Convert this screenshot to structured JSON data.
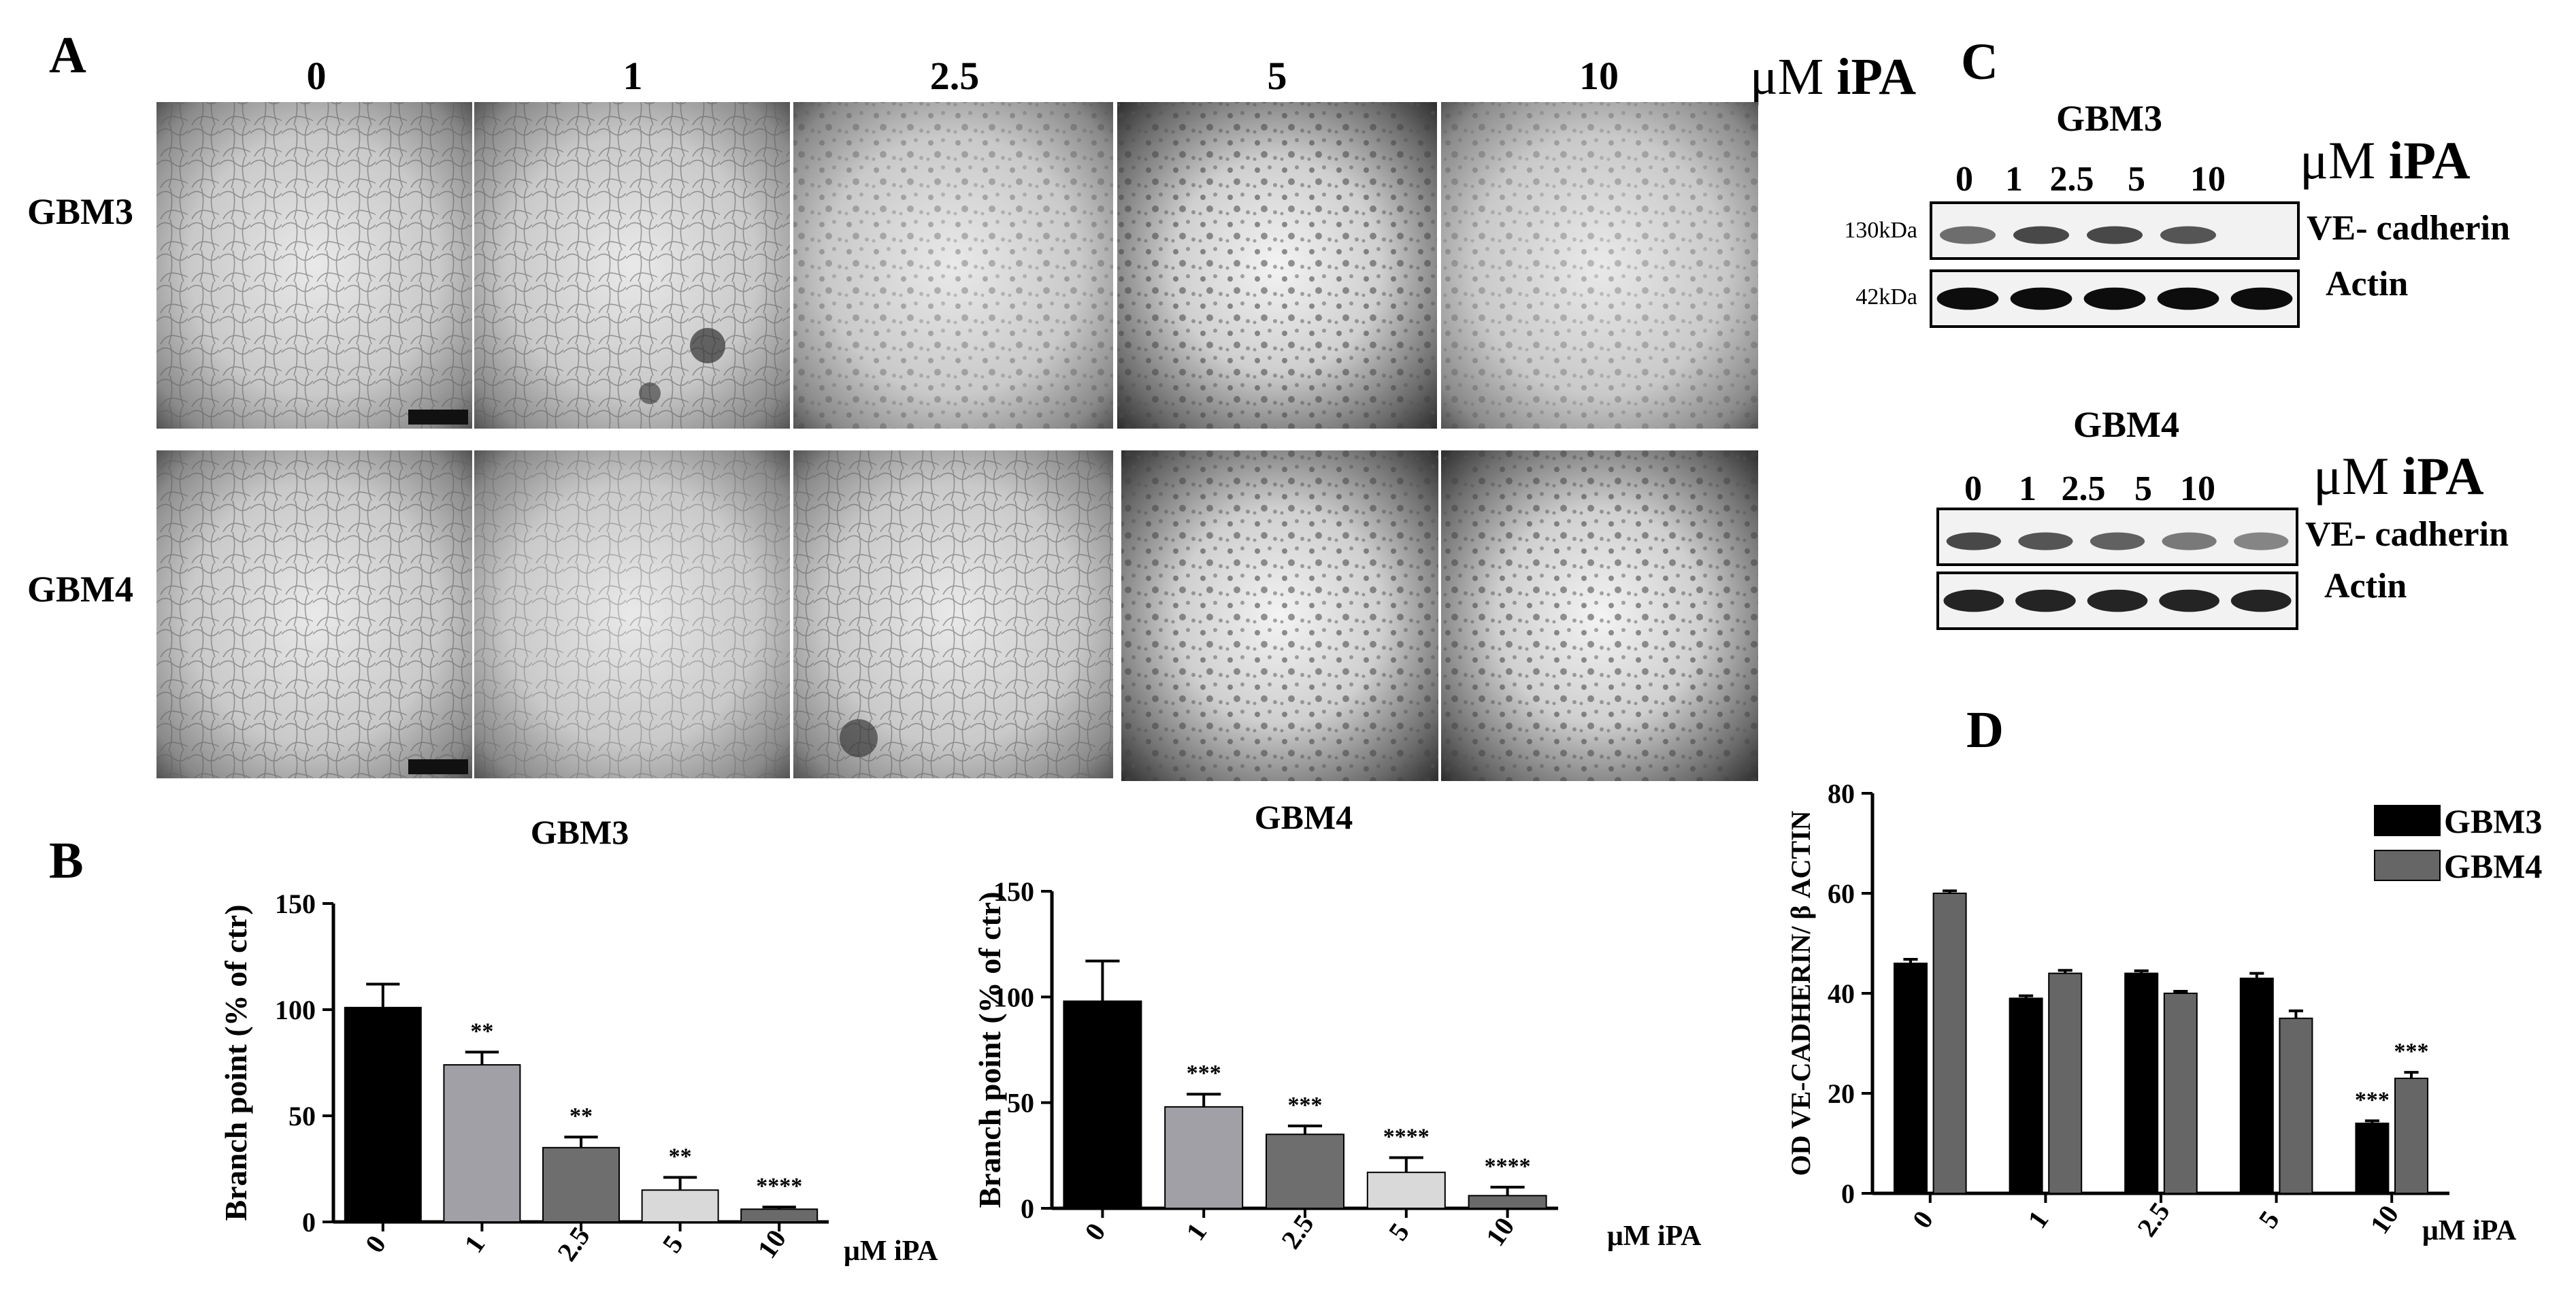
{
  "panel_labels": {
    "A": "A",
    "B": "B",
    "C": "C",
    "D": "D"
  },
  "micrographs": {
    "doses": [
      "0",
      "1",
      "2.5",
      "5",
      "10"
    ],
    "unit_label": "μM",
    "unit_drug": "iPA",
    "rows": [
      "GBM3",
      "GBM4"
    ]
  },
  "western": {
    "blots": [
      {
        "title": "GBM3",
        "doses": [
          "0",
          "1",
          "2.5",
          "5",
          "10"
        ],
        "unit": "μM",
        "drug": "iPA",
        "mw_top": "130kDa",
        "mw_bottom": "42kDa",
        "band_top": "VE- cadherin",
        "band_bottom": "Actin",
        "intensity_top": [
          0.55,
          0.7,
          0.7,
          0.65,
          0.0
        ],
        "intensity_bottom": [
          0.95,
          0.95,
          0.95,
          0.95,
          0.95
        ]
      },
      {
        "title": "GBM4",
        "doses": [
          "0",
          "1",
          "2.5",
          "5",
          "10"
        ],
        "unit": "μM",
        "drug": "iPA",
        "mw_top": "",
        "mw_bottom": "",
        "band_top": "VE- cadherin",
        "band_bottom": "Actin",
        "intensity_top": [
          0.7,
          0.65,
          0.6,
          0.5,
          0.45
        ],
        "intensity_bottom": [
          0.85,
          0.85,
          0.85,
          0.85,
          0.85
        ]
      }
    ]
  },
  "chart_data": [
    {
      "type": "bar",
      "title": "GBM3",
      "categories": [
        "0",
        "1",
        "2.5",
        "5",
        "10"
      ],
      "values": [
        101,
        74,
        35,
        15,
        6
      ],
      "errors": [
        11,
        6,
        5,
        6,
        1
      ],
      "significance": [
        "",
        "**",
        "**",
        "**",
        "****"
      ],
      "colors": [
        "#000000",
        "#a0a0a6",
        "#6e6e6e",
        "#d9d9d9",
        "#6a6a6a"
      ],
      "ylabel": "Branch point (% of ctr)",
      "xlabel": "μM iPA",
      "ylim": [
        0,
        150
      ],
      "yticks": [
        "0",
        "50",
        "100",
        "150"
      ]
    },
    {
      "type": "bar",
      "title": "GBM4",
      "categories": [
        "0",
        "1",
        "2.5",
        "5",
        "10"
      ],
      "values": [
        98,
        48,
        35,
        17,
        6
      ],
      "errors": [
        19,
        6,
        4,
        7,
        4
      ],
      "significance": [
        "",
        "***",
        "***",
        "****",
        "****"
      ],
      "colors": [
        "#000000",
        "#a0a0a6",
        "#6e6e6e",
        "#d9d9d9",
        "#6a6a6a"
      ],
      "ylabel": "Branch point (% of ctr)",
      "xlabel": "μM iPA",
      "ylim": [
        0,
        150
      ],
      "yticks": [
        "0",
        "50",
        "100",
        "150"
      ]
    },
    {
      "type": "bar",
      "title": "",
      "categories": [
        "0",
        "1",
        "2.5",
        "5",
        "10"
      ],
      "series": [
        {
          "name": "GBM3",
          "color": "#000000",
          "values": [
            46,
            39,
            44,
            43,
            14
          ],
          "errors": [
            0.8,
            0.5,
            0.5,
            1,
            0.5
          ],
          "significance": [
            "",
            "",
            "",
            "",
            "***"
          ]
        },
        {
          "name": "GBM4",
          "color": "#666666",
          "values": [
            60,
            44,
            40,
            35,
            23
          ],
          "errors": [
            0.5,
            0.6,
            0.4,
            1.5,
            1.2
          ],
          "significance": [
            "",
            "",
            "",
            "",
            "***"
          ]
        }
      ],
      "ylabel": "OD VE-CADHERIN/ β ACTIN",
      "xlabel": "μM iPA",
      "ylim": [
        0,
        80
      ],
      "yticks": [
        "0",
        "20",
        "40",
        "60",
        "80"
      ]
    }
  ]
}
